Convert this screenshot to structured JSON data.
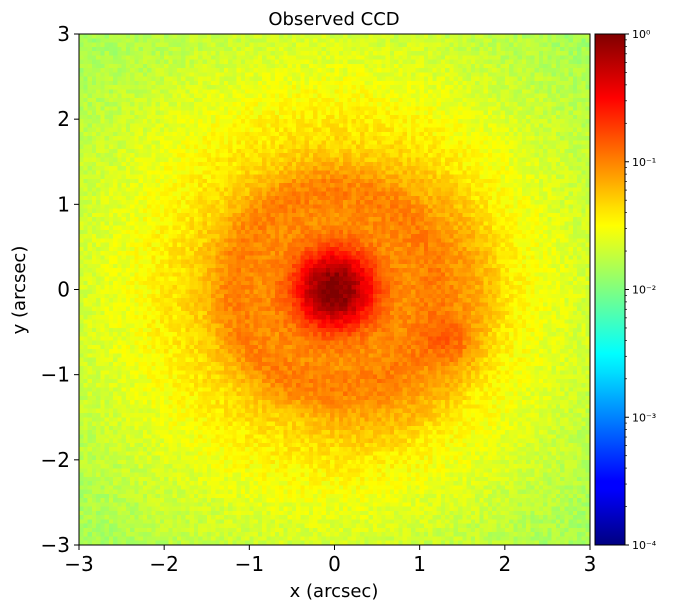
{
  "chart_data": {
    "type": "heatmap",
    "title": "Observed CCD",
    "xlabel": "x (arcsec)",
    "ylabel": "y (arcsec)",
    "xlim": [
      -3,
      3
    ],
    "ylim": [
      -3,
      3
    ],
    "xticks": [
      -3,
      -2,
      -1,
      0,
      1,
      2,
      3
    ],
    "yticks": [
      -3,
      -2,
      -1,
      0,
      1,
      2,
      3
    ],
    "xtick_labels": [
      "−3",
      "−2",
      "−1",
      "0",
      "1",
      "2",
      "3"
    ],
    "ytick_labels": [
      "−3",
      "−2",
      "−1",
      "0",
      "1",
      "2",
      "3"
    ],
    "colorbar": {
      "scale": "log",
      "colormap": "jet",
      "range": [
        0.0001,
        1
      ],
      "ticks": [
        0.0001,
        0.001,
        0.01,
        0.1,
        1
      ],
      "tick_labels": [
        "10⁻⁴",
        "10⁻³",
        "10⁻²",
        "10⁻¹",
        "10⁰"
      ]
    },
    "grid": false,
    "features": {
      "core_center": [
        0,
        0
      ],
      "core_radius_arcsec": 0.35,
      "core_peak_value": 1.0,
      "ring_radius_arcsec": 1.2,
      "lensed_arc_knot": [
        1.35,
        -0.6
      ],
      "background_level": 0.01
    }
  }
}
